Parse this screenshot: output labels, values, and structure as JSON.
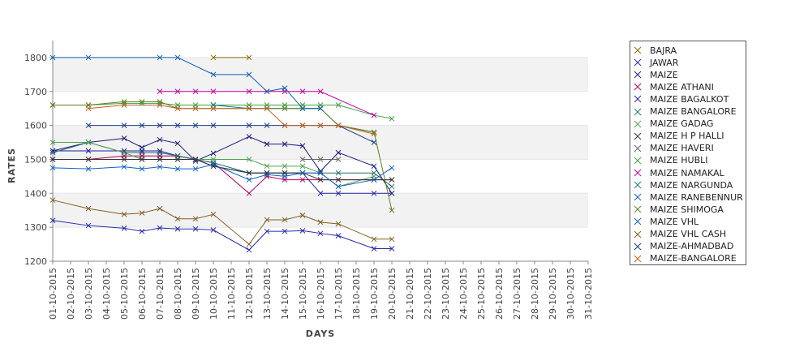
{
  "chart_data": {
    "type": "line",
    "title": "",
    "xlabel": "DAYS",
    "ylabel": "RATES",
    "ylim": [
      1200,
      1850
    ],
    "yticks": [
      1200,
      1300,
      1400,
      1500,
      1600,
      1700,
      1800
    ],
    "grid": "alternating horizontal bands",
    "legend_position": "right",
    "categories": [
      "01-10-2015",
      "02-10-2015",
      "03-10-2015",
      "04-10-2015",
      "05-10-2015",
      "06-10-2015",
      "07-10-2015",
      "08-10-2015",
      "09-10-2015",
      "10-10-2015",
      "11-10-2015",
      "12-10-2015",
      "13-10-2015",
      "14-10-2015",
      "15-10-2015",
      "16-10-2015",
      "17-10-2015",
      "18-10-2015",
      "19-10-2015",
      "20-10-2015",
      "21-10-2015",
      "22-10-2015",
      "23-10-2015",
      "24-10-2015",
      "25-10-2015",
      "26-10-2015",
      "27-10-2015",
      "28-10-2015",
      "29-10-2015",
      "30-10-2015",
      "31-10-2015"
    ],
    "series": [
      {
        "name": "BAJRA",
        "color": "#8a6a00",
        "values": [
          null,
          null,
          null,
          null,
          null,
          null,
          null,
          null,
          null,
          1800,
          null,
          1800,
          null,
          null,
          null,
          null,
          null,
          null,
          null,
          null,
          null,
          null,
          null,
          null,
          null,
          null,
          null,
          null,
          null,
          null,
          null
        ]
      },
      {
        "name": "JAWAR",
        "color": "#2a2aa8",
        "values": [
          1320,
          null,
          1305,
          null,
          1297,
          1288,
          1298,
          1295,
          1295,
          1292,
          null,
          1233,
          1288,
          1288,
          1290,
          1282,
          1275,
          null,
          1237,
          1237,
          null,
          null,
          null,
          null,
          null,
          null,
          null,
          null,
          null,
          null,
          null
        ]
      },
      {
        "name": "MAIZE",
        "color": "#1a1a7a",
        "values": [
          1525,
          null,
          1550,
          null,
          1562,
          1535,
          1558,
          1547,
          1495,
          1518,
          null,
          1567,
          1545,
          1545,
          1540,
          1465,
          1520,
          null,
          1480,
          1400,
          null,
          null,
          null,
          null,
          null,
          null,
          null,
          null,
          null,
          null,
          null
        ]
      },
      {
        "name": "MAIZE ATHANI",
        "color": "#b0005e",
        "values": [
          1500,
          null,
          1500,
          null,
          1510,
          1510,
          1510,
          1510,
          1500,
          1490,
          null,
          1400,
          1450,
          1440,
          1440,
          1440,
          1440,
          null,
          1440,
          1440,
          null,
          null,
          null,
          null,
          null,
          null,
          null,
          null,
          null,
          null,
          null
        ]
      },
      {
        "name": "MAIZE BAGALKOT",
        "color": "#2020a0",
        "values": [
          1525,
          null,
          1525,
          null,
          1525,
          1525,
          1525,
          1510,
          1500,
          1480,
          null,
          1460,
          1460,
          1460,
          1460,
          1400,
          1400,
          null,
          1400,
          1400,
          null,
          null,
          null,
          null,
          null,
          null,
          null,
          null,
          null,
          null,
          null
        ]
      },
      {
        "name": "MAIZE BANGALORE",
        "color": "#207070",
        "values": [
          1520,
          null,
          1550,
          null,
          1520,
          1520,
          1520,
          1510,
          1500,
          1490,
          null,
          1460,
          1460,
          1460,
          1460,
          1460,
          1460,
          null,
          1460,
          1420,
          null,
          null,
          null,
          null,
          null,
          null,
          null,
          null,
          null,
          null,
          null
        ]
      },
      {
        "name": "MAIZE GADAG",
        "color": "#50a050",
        "values": [
          1550,
          null,
          1550,
          null,
          1520,
          1500,
          1500,
          1500,
          1500,
          1500,
          null,
          1500,
          1480,
          1480,
          1480,
          1460,
          1420,
          null,
          1450,
          null,
          null,
          null,
          null,
          null,
          null,
          null,
          null,
          null,
          null,
          null,
          null
        ]
      },
      {
        "name": "MAIZE H P HALLI",
        "color": "#333333",
        "values": [
          1500,
          null,
          1500,
          null,
          1500,
          1500,
          1500,
          1500,
          1500,
          1480,
          null,
          1460,
          1460,
          1460,
          1460,
          1440,
          1440,
          null,
          1440,
          1440,
          null,
          null,
          null,
          null,
          null,
          null,
          null,
          null,
          null,
          null,
          null
        ]
      },
      {
        "name": "MAIZE HAVERI",
        "color": "#666666",
        "values": [
          null,
          null,
          null,
          null,
          null,
          null,
          null,
          null,
          null,
          null,
          null,
          null,
          null,
          null,
          1500,
          1500,
          1500,
          null,
          null,
          null,
          null,
          null,
          null,
          null,
          null,
          null,
          null,
          null,
          null,
          null,
          null
        ]
      },
      {
        "name": "MAIZE HUBLI",
        "color": "#40a040",
        "values": [
          1660,
          null,
          1660,
          null,
          1665,
          1665,
          1665,
          1660,
          1660,
          1660,
          null,
          1660,
          1660,
          1660,
          1660,
          1660,
          1660,
          null,
          1630,
          1620,
          null,
          null,
          null,
          null,
          null,
          null,
          null,
          null,
          null,
          null,
          null
        ]
      },
      {
        "name": "MAIZE NAMAKAL",
        "color": "#c000a0",
        "values": [
          null,
          null,
          null,
          null,
          null,
          null,
          1700,
          1700,
          1700,
          1700,
          null,
          1700,
          1700,
          1700,
          1700,
          1700,
          null,
          null,
          1630,
          null,
          null,
          null,
          null,
          null,
          null,
          null,
          null,
          null,
          null,
          null,
          null
        ]
      },
      {
        "name": "MAIZE NARGUNDA",
        "color": "#108080",
        "values": [
          null,
          null,
          null,
          null,
          null,
          null,
          null,
          null,
          null,
          1660,
          null,
          1650,
          1650,
          1650,
          1650,
          1650,
          1600,
          null,
          1580,
          null,
          null,
          null,
          null,
          null,
          null,
          null,
          null,
          null,
          null,
          null,
          null
        ]
      },
      {
        "name": "MAIZE RANEBENNUR",
        "color": "#1060c0",
        "values": [
          1475,
          null,
          1472,
          null,
          1478,
          1472,
          1478,
          1472,
          1472,
          1485,
          null,
          1440,
          1455,
          1450,
          1460,
          1460,
          1420,
          null,
          1440,
          1475,
          null,
          null,
          null,
          null,
          null,
          null,
          null,
          null,
          null,
          null,
          null
        ]
      },
      {
        "name": "MAIZE SHIMOGA",
        "color": "#608020",
        "values": [
          1660,
          null,
          1660,
          null,
          1670,
          1670,
          1670,
          1650,
          1650,
          1650,
          null,
          1650,
          1650,
          1650,
          1650,
          1650,
          1600,
          null,
          1580,
          1350,
          null,
          null,
          null,
          null,
          null,
          null,
          null,
          null,
          null,
          null,
          null
        ]
      },
      {
        "name": "MAIZE VHL",
        "color": "#1060b0",
        "values": [
          1800,
          null,
          1800,
          null,
          null,
          null,
          1800,
          1800,
          null,
          1750,
          null,
          1750,
          1700,
          1710,
          1650,
          1650,
          null,
          null,
          null,
          null,
          null,
          null,
          null,
          null,
          null,
          null,
          null,
          null,
          null,
          null,
          null
        ]
      },
      {
        "name": "MAIZE VHL CASH",
        "color": "#806020",
        "values": [
          1380,
          null,
          1355,
          null,
          1338,
          1342,
          1355,
          1325,
          1325,
          1338,
          null,
          1250,
          1322,
          1322,
          1335,
          1315,
          1310,
          null,
          1265,
          1265,
          null,
          null,
          null,
          null,
          null,
          null,
          null,
          null,
          null,
          null,
          null
        ]
      },
      {
        "name": "MAIZE-AHMADBAD",
        "color": "#1a3a8a",
        "values": [
          null,
          null,
          1600,
          null,
          1600,
          1600,
          1600,
          1600,
          1600,
          1600,
          null,
          1600,
          1600,
          1600,
          1600,
          1600,
          1600,
          null,
          1550,
          null,
          null,
          null,
          null,
          null,
          null,
          null,
          null,
          null,
          null,
          null,
          null
        ]
      },
      {
        "name": "MAIZE-BANGALORE",
        "color": "#c06020",
        "values": [
          null,
          null,
          1650,
          null,
          1660,
          null,
          1660,
          1650,
          1650,
          1650,
          null,
          1650,
          1650,
          1600,
          1600,
          1600,
          1600,
          null,
          1575,
          null,
          null,
          null,
          null,
          null,
          null,
          null,
          null,
          null,
          null,
          null,
          null
        ]
      }
    ]
  }
}
